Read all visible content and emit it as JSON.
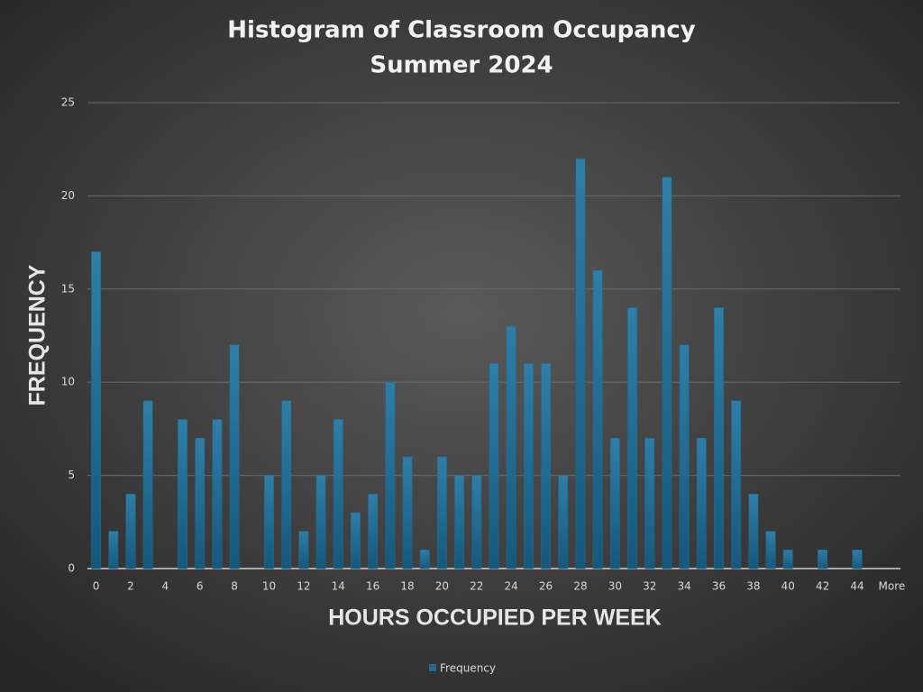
{
  "chart_data": {
    "type": "bar",
    "title": "Histogram of Classroom Occupancy",
    "subtitle": "Summer 2024",
    "x_label": "HOURS OCCUPIED PER WEEK",
    "y_label": "FREQUENCY",
    "categories": [
      "0",
      null,
      "2",
      null,
      "4",
      null,
      "6",
      null,
      "8",
      null,
      "10",
      null,
      "12",
      null,
      "14",
      null,
      "16",
      null,
      "18",
      null,
      "20",
      null,
      "22",
      null,
      "24",
      null,
      "26",
      null,
      "28",
      null,
      "30",
      null,
      "32",
      null,
      "34",
      null,
      "36",
      null,
      "38",
      null,
      "40",
      null,
      "42",
      null,
      "44",
      null,
      "More"
    ],
    "series": [
      {
        "name": "Frequency",
        "color": "#1f6b94",
        "values": [
          17,
          2,
          4,
          9,
          0,
          8,
          7,
          8,
          12,
          0,
          5,
          9,
          2,
          5,
          8,
          3,
          4,
          10,
          6,
          1,
          6,
          5,
          5,
          11,
          13,
          11,
          11,
          5,
          22,
          16,
          7,
          14,
          7,
          21,
          12,
          7,
          14,
          9,
          4,
          2,
          1,
          0,
          1,
          0,
          1,
          0,
          0
        ]
      }
    ],
    "ylim": [
      0,
      25
    ],
    "yticks": [
      0,
      5,
      10,
      15,
      20,
      25
    ],
    "grid": true,
    "legend": "bottom"
  }
}
